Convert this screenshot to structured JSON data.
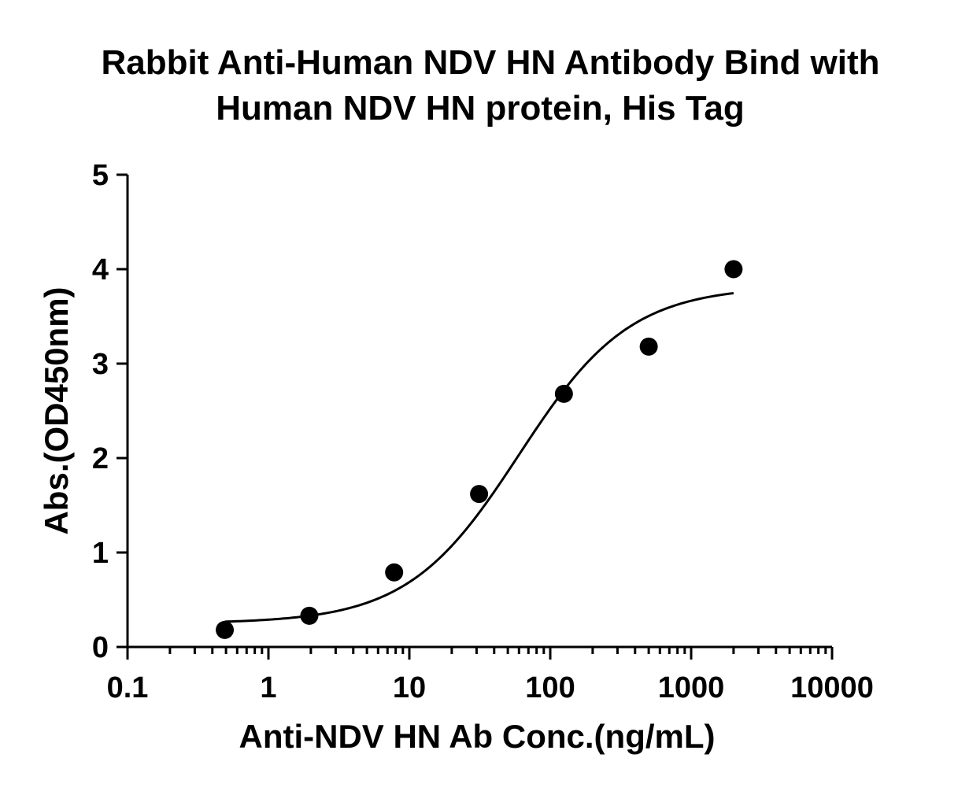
{
  "chart_data": {
    "type": "scatter",
    "title_lines": [
      "Rabbit Anti-Human NDV HN Antibody Bind with",
      "Human NDV HN protein, His Tag"
    ],
    "xlabel": "Anti-NDV HN Ab Conc.(ng/mL)",
    "ylabel": "Abs.(OD450nm)",
    "x_scale": "log",
    "xlim": [
      0.1,
      10000
    ],
    "ylim": [
      0,
      5
    ],
    "x_ticks": [
      {
        "value": 0.1,
        "label": "0.1"
      },
      {
        "value": 1,
        "label": "1"
      },
      {
        "value": 10,
        "label": "10"
      },
      {
        "value": 100,
        "label": "100"
      },
      {
        "value": 1000,
        "label": "1000"
      },
      {
        "value": 10000,
        "label": "10000"
      }
    ],
    "y_ticks": [
      {
        "value": 0,
        "label": "0"
      },
      {
        "value": 1,
        "label": "1"
      },
      {
        "value": 2,
        "label": "2"
      },
      {
        "value": 3,
        "label": "3"
      },
      {
        "value": 4,
        "label": "4"
      },
      {
        "value": 5,
        "label": "5"
      }
    ],
    "grid": false,
    "legend": "none",
    "series": [
      {
        "points": [
          {
            "x": 0.49,
            "y": 0.18
          },
          {
            "x": 1.95,
            "y": 0.33
          },
          {
            "x": 7.8,
            "y": 0.79
          },
          {
            "x": 31.25,
            "y": 1.62
          },
          {
            "x": 125,
            "y": 2.68
          },
          {
            "x": 500,
            "y": 3.18
          },
          {
            "x": 2000,
            "y": 4.0
          }
        ],
        "fit": {
          "model": "4PL",
          "bottom": 0.25,
          "top": 3.82,
          "ec50": 60,
          "hill": 1.1,
          "x_range": [
            0.49,
            2000
          ]
        },
        "color": "#000000"
      }
    ]
  }
}
